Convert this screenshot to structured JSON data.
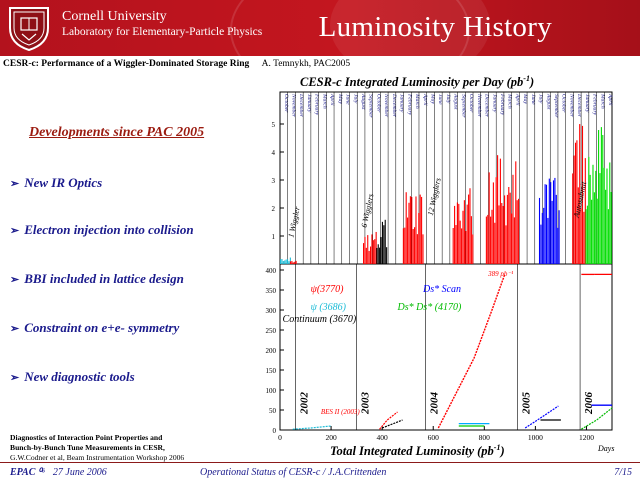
{
  "header": {
    "university": "Cornell University",
    "lab": "Laboratory for Elementary-Particle Physics",
    "title": "Luminosity History",
    "seal_icon": "cornell-seal-icon",
    "band_color": "#c4161f"
  },
  "subtitle": {
    "paper": "CESR-c: Performance of a Wiggler-Dominated Storage Ring",
    "author": "A. Temnykh, PAC2005"
  },
  "left": {
    "section_title": "Developments since PAC 2005",
    "bullets": [
      "New IR Optics",
      "Electron injection into collision",
      "BBI included in lattice design",
      "Constraint on e+e- symmetry",
      "New diagnostic tools"
    ],
    "reference": {
      "line1": "Diagnostics of Interaction Point Properties and",
      "line2": "Bunch-by-Bunch Tune Measurements in CESR,",
      "line3": "G.W.Codner et al, Beam Instrumentation Workshop 2006"
    }
  },
  "footer": {
    "conference": "EPAC ⁰⁶",
    "date": "27 June 2006",
    "talk": "Operational Status of CESR-c / J.A.Crittenden",
    "page": "7/15"
  },
  "chart_data": [
    {
      "type": "bar",
      "title_main": "CESR-c Integrated Luminosity per Day (pb",
      "title_sup": "-1",
      "title_end": ")",
      "ylim": [
        0,
        5.5
      ],
      "yticks": [
        "1",
        "2",
        "3",
        "4",
        "5"
      ],
      "annotations": [
        "1 Wiggler",
        "6 Wigglers",
        "12 Wigglers",
        "Autosubmit"
      ],
      "months": [
        "October",
        "November",
        "December",
        "January",
        "February",
        "March",
        "April",
        "May",
        "June",
        "July",
        "August",
        "September",
        "October",
        "November",
        "December",
        "January",
        "February",
        "March",
        "April",
        "May",
        "June",
        "July",
        "August",
        "September",
        "October",
        "November",
        "December",
        "January",
        "February",
        "March",
        "April",
        "May",
        "June",
        "July",
        "August",
        "September",
        "October",
        "November",
        "December",
        "January",
        "February",
        "March",
        "April"
      ],
      "series_colors": [
        "#1bbbd6",
        "#ff0000",
        "#000000",
        "#ff0000",
        "#0000ff",
        "#00dd00"
      ]
    },
    {
      "type": "line",
      "xlim": [
        0,
        1300
      ],
      "ylim": [
        0,
        400
      ],
      "xticks": [
        "0",
        "200",
        "400",
        "600",
        "800",
        "1000",
        "1200"
      ],
      "yticks": [
        "0",
        "50",
        "100",
        "150",
        "200",
        "250",
        "300",
        "350",
        "400"
      ],
      "xlabel_main": "Total Integrated Luminosity (pb",
      "xlabel_sup": "-1",
      "xlabel_end": ")",
      "xunit": "Days",
      "years": [
        "2002",
        "2003",
        "2004",
        "2005",
        "2006"
      ],
      "labels": {
        "psi3770": "ψ(3770)",
        "psi3686": "ψ (3686)",
        "continuum": "Continuum (3670)",
        "ds_scan": "Ds* Scan",
        "ds_ds": "Ds* Ds* (4170)",
        "bes": "BES II (2003)",
        "peak": "389 pb⁻¹"
      }
    }
  ]
}
